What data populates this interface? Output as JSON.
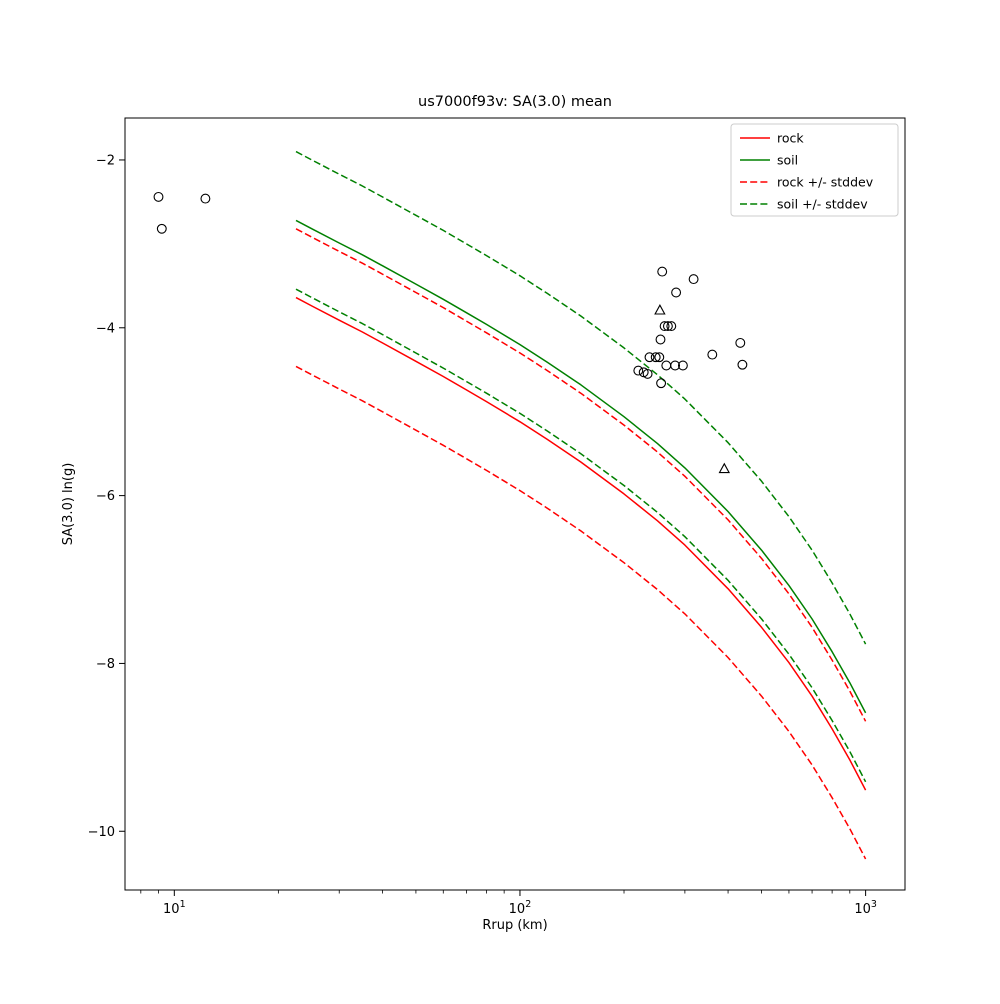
{
  "chart_data": {
    "type": "line+scatter",
    "title": "us7000f93v: SA(3.0) mean",
    "xlabel": "Rrup (km)",
    "ylabel": "SA(3.0) ln(g)",
    "x_scale": "log",
    "y_scale": "linear",
    "xlim": [
      7.2,
      1300
    ],
    "ylim": [
      -10.7,
      -1.5
    ],
    "grid": false,
    "legend_position": "upper right",
    "x_ticks": [
      {
        "value": 10,
        "label_base": "10",
        "label_exp": "1"
      },
      {
        "value": 100,
        "label_base": "10",
        "label_exp": "2"
      },
      {
        "value": 1000,
        "label_base": "10",
        "label_exp": "3"
      }
    ],
    "y_ticks": [
      {
        "value": -2,
        "label": "−2"
      },
      {
        "value": -4,
        "label": "−4"
      },
      {
        "value": -6,
        "label": "−6"
      },
      {
        "value": -8,
        "label": "−8"
      },
      {
        "value": -10,
        "label": "−10"
      }
    ],
    "x": [
      22.5,
      25,
      30,
      35,
      40,
      50,
      60,
      70,
      80,
      100,
      120,
      150,
      200,
      250,
      300,
      400,
      500,
      600,
      700,
      800,
      900,
      1000
    ],
    "series": [
      {
        "name": "rock",
        "color": "#ff0000",
        "style": "solid",
        "y": [
          -3.64,
          -3.74,
          -3.91,
          -4.05,
          -4.18,
          -4.4,
          -4.58,
          -4.74,
          -4.88,
          -5.12,
          -5.33,
          -5.6,
          -5.98,
          -6.3,
          -6.59,
          -7.11,
          -7.57,
          -7.99,
          -8.39,
          -8.78,
          -9.15,
          -9.51
        ]
      },
      {
        "name": "soil",
        "color": "#008000",
        "style": "solid",
        "y": [
          -2.72,
          -2.82,
          -2.99,
          -3.13,
          -3.26,
          -3.48,
          -3.66,
          -3.82,
          -3.96,
          -4.2,
          -4.41,
          -4.68,
          -5.06,
          -5.38,
          -5.67,
          -6.19,
          -6.65,
          -7.07,
          -7.47,
          -7.86,
          -8.23,
          -8.59
        ]
      },
      {
        "name": "rock +/- stddev",
        "color": "#ff0000",
        "style": "dashed",
        "y_upper": [
          -2.82,
          -2.92,
          -3.09,
          -3.23,
          -3.36,
          -3.58,
          -3.76,
          -3.92,
          -4.06,
          -4.3,
          -4.51,
          -4.78,
          -5.16,
          -5.48,
          -5.77,
          -6.29,
          -6.75,
          -7.17,
          -7.57,
          -7.96,
          -8.33,
          -8.69
        ],
        "y_lower": [
          -4.46,
          -4.56,
          -4.73,
          -4.87,
          -5.0,
          -5.22,
          -5.4,
          -5.56,
          -5.7,
          -5.94,
          -6.15,
          -6.42,
          -6.8,
          -7.12,
          -7.41,
          -7.93,
          -8.39,
          -8.81,
          -9.21,
          -9.6,
          -9.97,
          -10.33
        ]
      },
      {
        "name": "soil +/- stddev",
        "color": "#008000",
        "style": "dashed",
        "y_upper": [
          -1.9,
          -2.0,
          -2.17,
          -2.31,
          -2.44,
          -2.66,
          -2.84,
          -3.0,
          -3.14,
          -3.38,
          -3.59,
          -3.86,
          -4.24,
          -4.56,
          -4.85,
          -5.37,
          -5.83,
          -6.25,
          -6.65,
          -7.04,
          -7.41,
          -7.77
        ],
        "y_lower": [
          -3.54,
          -3.64,
          -3.81,
          -3.95,
          -4.08,
          -4.3,
          -4.48,
          -4.64,
          -4.78,
          -5.02,
          -5.23,
          -5.5,
          -5.88,
          -6.2,
          -6.49,
          -7.01,
          -7.47,
          -7.89,
          -8.29,
          -8.68,
          -9.05,
          -9.41
        ]
      }
    ],
    "scatter": {
      "marker_color": "#000000",
      "circles": [
        [
          9.0,
          -2.44
        ],
        [
          12.3,
          -2.46
        ],
        [
          9.2,
          -2.82
        ],
        [
          258,
          -3.33
        ],
        [
          318,
          -3.42
        ],
        [
          283,
          -3.58
        ],
        [
          262,
          -3.98
        ],
        [
          268,
          -3.98
        ],
        [
          274,
          -3.98
        ],
        [
          255,
          -4.14
        ],
        [
          434,
          -4.18
        ],
        [
          237,
          -4.35
        ],
        [
          247,
          -4.35
        ],
        [
          253,
          -4.35
        ],
        [
          360,
          -4.32
        ],
        [
          220,
          -4.51
        ],
        [
          228,
          -4.53
        ],
        [
          234,
          -4.55
        ],
        [
          265,
          -4.45
        ],
        [
          281,
          -4.45
        ],
        [
          296,
          -4.45
        ],
        [
          440,
          -4.44
        ],
        [
          256,
          -4.66
        ]
      ],
      "triangles": [
        [
          254,
          -3.79
        ],
        [
          390,
          -5.68
        ]
      ]
    },
    "legend": {
      "entries": [
        {
          "label": "rock",
          "color": "#ff0000",
          "dashed": false
        },
        {
          "label": "soil",
          "color": "#008000",
          "dashed": false
        },
        {
          "label": "rock +/- stddev",
          "color": "#ff0000",
          "dashed": true
        },
        {
          "label": "soil +/- stddev",
          "color": "#008000",
          "dashed": true
        }
      ]
    }
  }
}
